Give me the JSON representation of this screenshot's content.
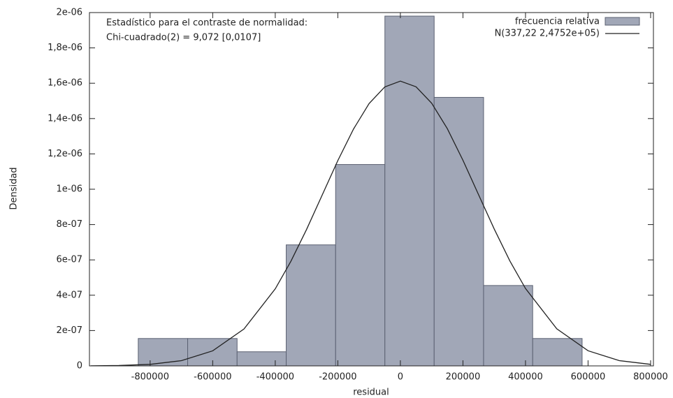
{
  "chart_data": {
    "type": "histogram",
    "x_label": "residual",
    "y_label": "Densidad",
    "annotations": [
      "Estadístico para el contraste de normalidad:",
      "Chi-cuadrado(2) = 9,072 [0,0107]"
    ],
    "xlim": [
      -994000,
      809000
    ],
    "ylim": [
      0,
      2e-06
    ],
    "xticks": [
      -800000,
      -600000,
      -400000,
      -200000,
      0,
      200000,
      400000,
      600000,
      800000
    ],
    "yticks": [
      0,
      {
        "value": 2e-07,
        "label": "2e-07"
      },
      {
        "value": 4e-07,
        "label": "4e-07"
      },
      {
        "value": 6e-07,
        "label": "6e-07"
      },
      {
        "value": 8e-07,
        "label": "8e-07"
      },
      {
        "value": 1e-06,
        "label": "1e-06"
      },
      {
        "value": 1.2e-06,
        "label": "1,2e-06"
      },
      {
        "value": 1.4e-06,
        "label": "1,4e-06"
      },
      {
        "value": 1.6e-06,
        "label": "1,6e-06"
      },
      {
        "value": 1.8e-06,
        "label": "1,8e-06"
      },
      {
        "value": 2e-06,
        "label": "2e-06"
      }
    ],
    "legend": "top-right",
    "series": [
      {
        "name": "frecuencia relativa",
        "type": "histogram",
        "color": "#a1a7b7",
        "edge_color": "#5b6172",
        "bins": [
          -838000,
          -680000,
          -522000,
          -365000,
          -207000,
          -49500,
          108000,
          266000,
          423000,
          581000
        ],
        "values": [
          1.55e-07,
          1.55e-07,
          8e-08,
          6.85e-07,
          1.14e-06,
          1.98e-06,
          1.52e-06,
          4.55e-07,
          1.55e-07
        ]
      },
      {
        "name": "N(337,22 2,4752e+05)",
        "type": "line",
        "color": "#222222",
        "x": [
          -990000,
          -900000,
          -800000,
          -700000,
          -600000,
          -500000,
          -400000,
          -350000,
          -300000,
          -250000,
          -200000,
          -150000,
          -100000,
          -50000,
          0,
          50000,
          100000,
          150000,
          200000,
          250000,
          300000,
          350000,
          400000,
          500000,
          600000,
          700000,
          800000
        ],
        "values": [
          5e-10,
          2.16e-09,
          8.66e-09,
          2.95e-08,
          8.52e-08,
          2.09e-07,
          4.36e-07,
          5.92e-07,
          7.72e-07,
          9.67e-07,
          1.162e-06,
          1.34e-06,
          1.485e-06,
          1.579e-06,
          1.612e-06,
          1.58e-06,
          1.487e-06,
          1.343e-06,
          1.164e-06,
          9.69e-07,
          7.75e-07,
          5.94e-07,
          4.38e-07,
          2.1e-07,
          8.56e-08,
          2.97e-08,
          8.72e-09
        ]
      }
    ]
  }
}
